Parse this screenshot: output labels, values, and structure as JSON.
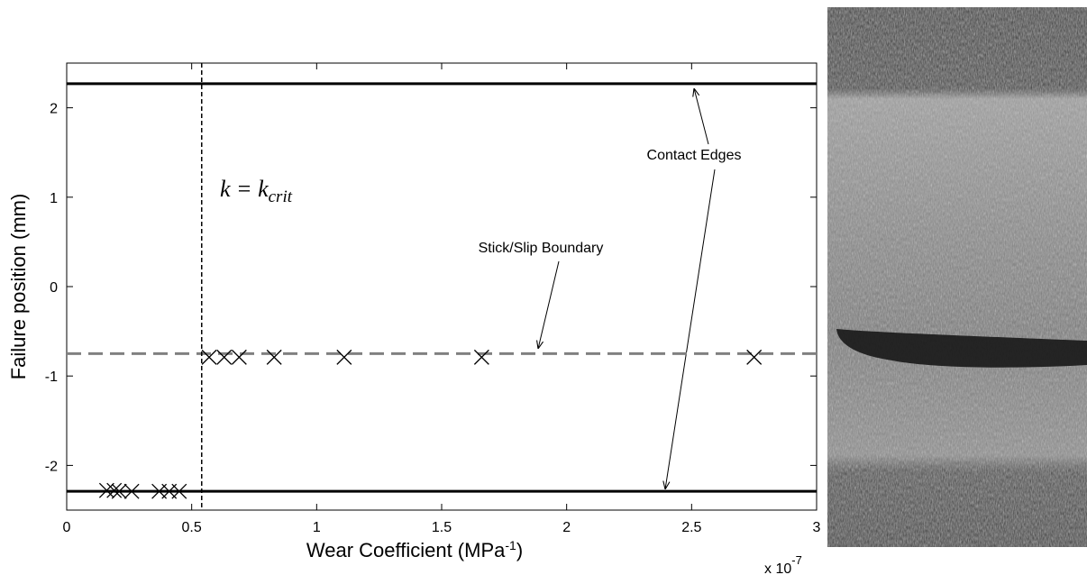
{
  "chart_data": {
    "type": "scatter",
    "x_label": [
      "Wear Coefficient (MPa",
      "-1",
      ")"
    ],
    "y_label": "Failure position (mm)",
    "x_multiplier": [
      "x 10",
      "-7"
    ],
    "xlim": [
      0,
      3
    ],
    "ylim": [
      -2.5,
      2.5
    ],
    "xticks": [
      0,
      0.5,
      1,
      1.5,
      2,
      2.5,
      3
    ],
    "yticks": [
      -2,
      -1,
      0,
      1,
      2
    ],
    "marker": "x",
    "color": "#000000",
    "x": [
      0.16,
      0.19,
      0.21,
      0.26,
      0.37,
      0.41,
      0.45,
      0.57,
      0.63,
      0.69,
      0.83,
      1.11,
      1.66,
      2.75
    ],
    "y": [
      -2.28,
      -2.28,
      -2.29,
      -2.29,
      -2.29,
      -2.29,
      -2.29,
      -0.79,
      -0.79,
      -0.79,
      -0.79,
      -0.79,
      -0.79,
      -0.79
    ],
    "hlines": [
      {
        "y": 2.27,
        "color": "#000000",
        "style": "solid"
      },
      {
        "y": -2.29,
        "color": "#000000",
        "style": "solid"
      },
      {
        "y": -0.75,
        "color": "#808080",
        "style": "dashed"
      }
    ],
    "vlines": [
      {
        "x": 0.54,
        "color": "#000000",
        "style": "dotted"
      }
    ],
    "annotations": {
      "k_crit": [
        "k = k",
        "crit"
      ],
      "stick_slip": "Stick/Slip Boundary",
      "contact_edges": "Contact Edges"
    }
  }
}
